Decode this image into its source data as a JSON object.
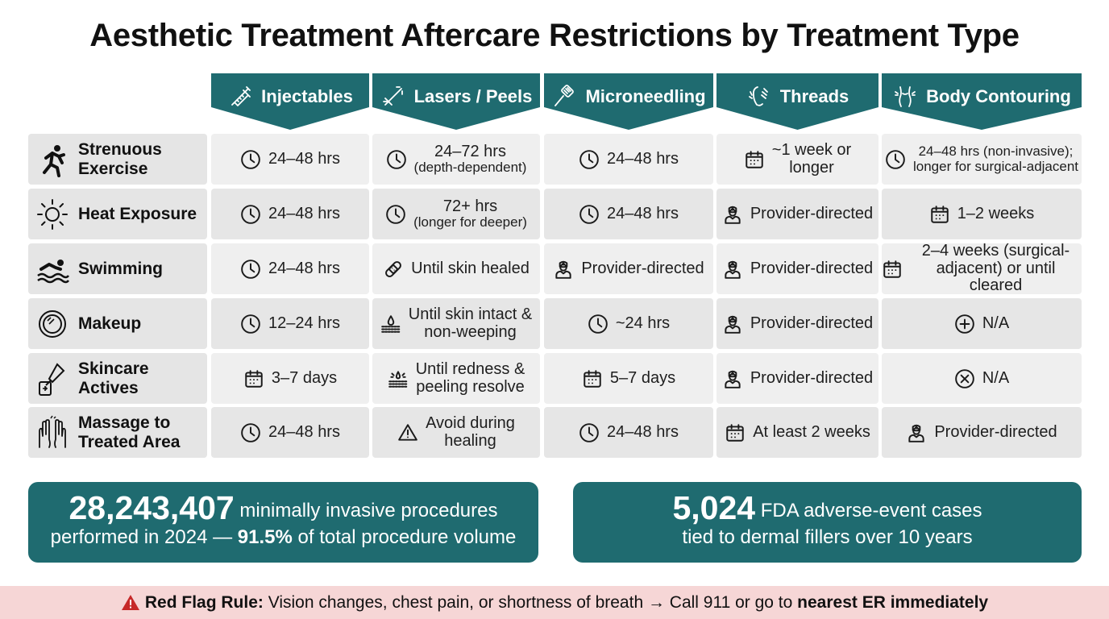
{
  "title": "Aesthetic Treatment Aftercare Restrictions by Treatment Type",
  "columns": [
    {
      "label": "Injectables",
      "icon": "syringe-icon"
    },
    {
      "label": "Lasers / Peels",
      "icon": "laser-icon"
    },
    {
      "label": "Microneedling",
      "icon": "microneedling-pen-icon"
    },
    {
      "label": "Threads",
      "icon": "face-threads-icon"
    },
    {
      "label": "Body Contouring",
      "icon": "body-contour-icon"
    }
  ],
  "rows": [
    {
      "label1": "Strenuous",
      "label2": "Exercise",
      "icon": "running-person-icon",
      "cells": [
        {
          "icon": "clock",
          "line1": "24–48 hrs",
          "line2": ""
        },
        {
          "icon": "clock",
          "line1": "24–72 hrs",
          "line2": "(depth-dependent)"
        },
        {
          "icon": "clock",
          "line1": "24–48 hrs",
          "line2": ""
        },
        {
          "icon": "calendar",
          "line1": "~1 week or",
          "line2": "longer"
        },
        {
          "icon": "clock",
          "line1": "24–48 hrs (non-invasive);",
          "line2": "longer for surgical-adjacent"
        }
      ]
    },
    {
      "label1": "Heat Exposure",
      "label2": "",
      "icon": "sun-icon",
      "cells": [
        {
          "icon": "clock",
          "line1": "24–48 hrs",
          "line2": ""
        },
        {
          "icon": "clock",
          "line1": "72+ hrs",
          "line2": "(longer for deeper)"
        },
        {
          "icon": "clock",
          "line1": "24–48 hrs",
          "line2": ""
        },
        {
          "icon": "doctor",
          "line1": "Provider-directed",
          "line2": ""
        },
        {
          "icon": "calendar",
          "line1": "1–2 weeks",
          "line2": ""
        }
      ]
    },
    {
      "label1": "Swimming",
      "label2": "",
      "icon": "swimmer-icon",
      "cells": [
        {
          "icon": "clock",
          "line1": "24–48 hrs",
          "line2": ""
        },
        {
          "icon": "bandage",
          "line1": "Until skin healed",
          "line2": ""
        },
        {
          "icon": "doctor",
          "line1": "Provider-directed",
          "line2": ""
        },
        {
          "icon": "doctor",
          "line1": "Provider-directed",
          "line2": ""
        },
        {
          "icon": "calendar",
          "line1": "2–4 weeks (surgical-",
          "line2": "adjacent) or until cleared"
        }
      ]
    },
    {
      "label1": "Makeup",
      "label2": "",
      "icon": "compact-mirror-icon",
      "cells": [
        {
          "icon": "clock",
          "line1": "12–24 hrs",
          "line2": ""
        },
        {
          "icon": "skin-drop",
          "line1": "Until skin intact &",
          "line2": "non-weeping"
        },
        {
          "icon": "clock",
          "line1": "~24 hrs",
          "line2": ""
        },
        {
          "icon": "doctor",
          "line1": "Provider-directed",
          "line2": ""
        },
        {
          "icon": "plus-circle",
          "line1": "N/A",
          "line2": ""
        }
      ]
    },
    {
      "label1": "Skincare",
      "label2": "Actives",
      "icon": "dropper-bottle-icon",
      "cells": [
        {
          "icon": "calendar",
          "line1": "3–7 days",
          "line2": ""
        },
        {
          "icon": "skin-peel",
          "line1": "Until redness &",
          "line2": "peeling resolve"
        },
        {
          "icon": "calendar",
          "line1": "5–7 days",
          "line2": ""
        },
        {
          "icon": "doctor",
          "line1": "Provider-directed",
          "line2": ""
        },
        {
          "icon": "x-circle",
          "line1": "N/A",
          "line2": ""
        }
      ]
    },
    {
      "label1": "Massage to",
      "label2": "Treated Area",
      "icon": "hands-icon",
      "cells": [
        {
          "icon": "clock",
          "line1": "24–48 hrs",
          "line2": ""
        },
        {
          "icon": "warning",
          "line1": "Avoid during",
          "line2": "healing"
        },
        {
          "icon": "clock",
          "line1": "24–48 hrs",
          "line2": ""
        },
        {
          "icon": "calendar",
          "line1": "At least 2 weeks",
          "line2": ""
        },
        {
          "icon": "doctor",
          "line1": "Provider-directed",
          "line2": ""
        }
      ]
    }
  ],
  "stats": [
    {
      "big": "28,243,407",
      "rest1": " minimally invasive procedures",
      "line2a": "performed in 2024 — ",
      "line2b": "91.5%",
      "line2c": " of total procedure volume"
    },
    {
      "big": "5,024",
      "rest1": " FDA adverse-event cases",
      "line2a": "tied to dermal fillers over 10 years",
      "line2b": "",
      "line2c": ""
    }
  ],
  "banner": {
    "icon": "warning-triangle-icon",
    "bold1": "Red Flag Rule:",
    "text": " Vision changes, chest pain, or shortness of breath → Call 911 or go to ",
    "bold2": "nearest ER immediately"
  },
  "colors": {
    "teal": "#1f6b70",
    "banner_bg": "#f6d6d6",
    "warning_red": "#c62828"
  }
}
